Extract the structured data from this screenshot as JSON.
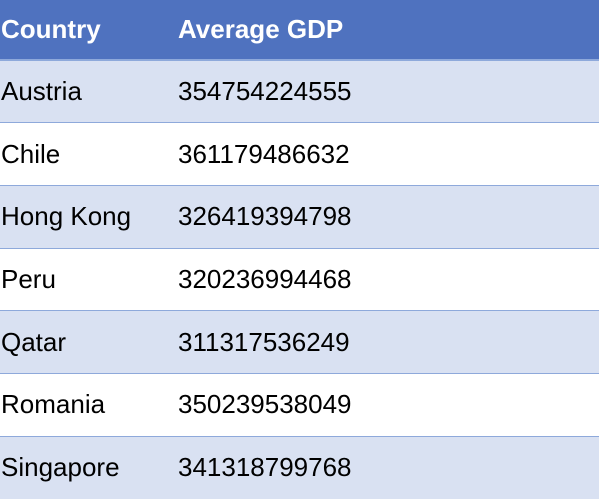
{
  "chart_data": {
    "type": "table",
    "columns": [
      "Country",
      "Average GDP"
    ],
    "rows": [
      {
        "country": "Austria",
        "average_gdp": "354754224555"
      },
      {
        "country": "Chile",
        "average_gdp": "361179486632"
      },
      {
        "country": "Hong Kong",
        "average_gdp": "326419394798"
      },
      {
        "country": "Peru",
        "average_gdp": "320236994468"
      },
      {
        "country": "Qatar",
        "average_gdp": "311317536249"
      },
      {
        "country": "Romania",
        "average_gdp": "350239538049"
      },
      {
        "country": "Singapore",
        "average_gdp": "341318799768"
      }
    ]
  },
  "colors": {
    "header_background": "#4f72bf",
    "header_text": "#ffffff",
    "band_row_background": "#d9e1f2",
    "plain_row_background": "#ffffff",
    "row_border": "#8ea9db"
  }
}
